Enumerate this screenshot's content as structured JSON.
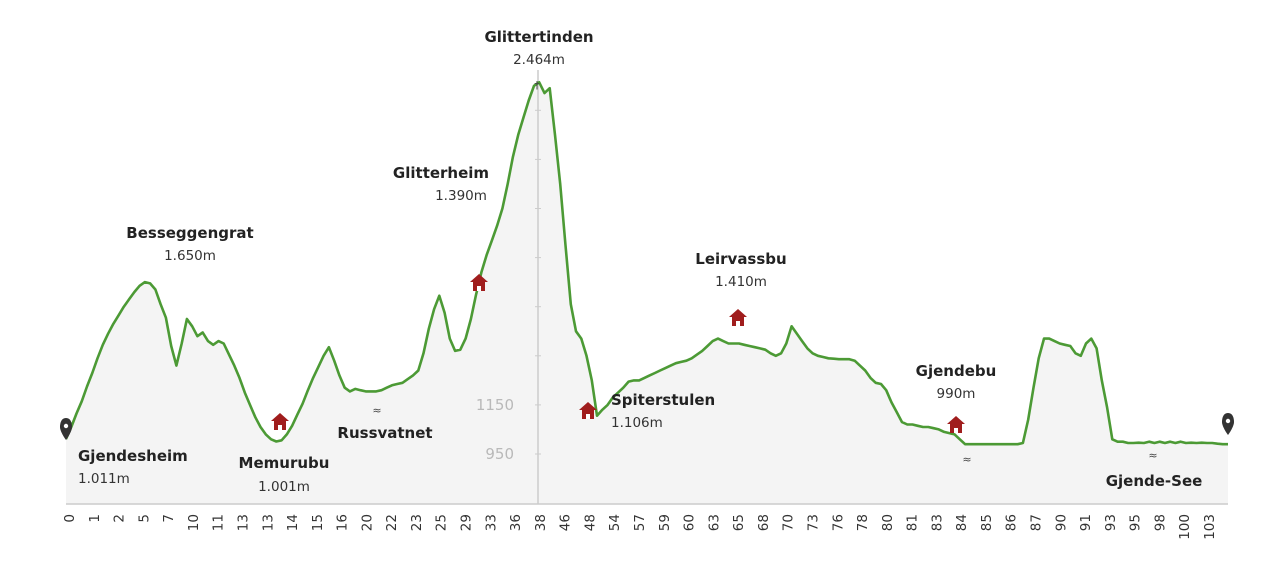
{
  "chart_data": {
    "type": "area",
    "title": "",
    "xlabel": "",
    "ylabel": "",
    "colors": {
      "line": "#4c9a35",
      "fill": "#f4f4f4",
      "hut": "#a01d1d",
      "axis": "#cccccc"
    },
    "y_ticks": [
      {
        "value": 950,
        "label": "950"
      },
      {
        "value": 1150,
        "label": "1150"
      }
    ],
    "x_ticks": [
      "0",
      "1",
      "2",
      "5",
      "7",
      "10",
      "11",
      "13",
      "13",
      "14",
      "15",
      "16",
      "20",
      "22",
      "23",
      "25",
      "29",
      "33",
      "36",
      "38",
      "46",
      "48",
      "54",
      "57",
      "59",
      "60",
      "63",
      "65",
      "68",
      "70",
      "73",
      "76",
      "78",
      "80",
      "81",
      "83",
      "84",
      "85",
      "86",
      "87",
      "90",
      "91",
      "93",
      "95",
      "98",
      "100",
      "103"
    ],
    "profile_elevation_m": [
      1011,
      1060,
      1115,
      1165,
      1225,
      1280,
      1340,
      1395,
      1440,
      1480,
      1515,
      1550,
      1580,
      1610,
      1635,
      1650,
      1645,
      1620,
      1560,
      1505,
      1390,
      1310,
      1400,
      1500,
      1470,
      1430,
      1445,
      1410,
      1395,
      1410,
      1400,
      1355,
      1310,
      1260,
      1200,
      1150,
      1100,
      1060,
      1030,
      1010,
      1001,
      1006,
      1030,
      1065,
      1110,
      1155,
      1210,
      1260,
      1305,
      1350,
      1385,
      1330,
      1270,
      1220,
      1205,
      1215,
      1210,
      1205,
      1205,
      1205,
      1210,
      1220,
      1230,
      1235,
      1240,
      1255,
      1270,
      1290,
      1360,
      1460,
      1540,
      1595,
      1525,
      1420,
      1370,
      1375,
      1420,
      1500,
      1600,
      1690,
      1760,
      1820,
      1880,
      1950,
      2050,
      2160,
      2250,
      2320,
      2390,
      2450,
      2464,
      2420,
      2440,
      2250,
      2050,
      1800,
      1560,
      1450,
      1420,
      1350,
      1250,
      1106,
      1130,
      1150,
      1180,
      1200,
      1220,
      1245,
      1250,
      1250,
      1260,
      1270,
      1280,
      1290,
      1300,
      1310,
      1320,
      1325,
      1330,
      1340,
      1355,
      1370,
      1390,
      1410,
      1420,
      1410,
      1400,
      1400,
      1400,
      1395,
      1390,
      1385,
      1380,
      1375,
      1360,
      1350,
      1360,
      1400,
      1470,
      1440,
      1410,
      1380,
      1360,
      1350,
      1345,
      1340,
      1338,
      1336,
      1336,
      1336,
      1330,
      1310,
      1290,
      1260,
      1240,
      1235,
      1210,
      1160,
      1120,
      1080,
      1070,
      1070,
      1065,
      1060,
      1060,
      1055,
      1050,
      1040,
      1035,
      1030,
      1010,
      990,
      990,
      990,
      990,
      990,
      990,
      990,
      990,
      990,
      990,
      990,
      995,
      1090,
      1220,
      1340,
      1420,
      1420,
      1410,
      1400,
      1395,
      1390,
      1360,
      1350,
      1400,
      1420,
      1380,
      1250,
      1140,
      1010,
      1000,
      1000,
      995,
      995,
      996,
      995,
      1000,
      995,
      1000,
      995,
      1000,
      995,
      1000,
      995,
      996,
      995,
      996,
      995,
      995,
      992,
      990,
      990
    ],
    "summit_index": 90,
    "annotations": [
      {
        "name": "Gjendesheim",
        "elevation": "1.011m",
        "marker": "pin"
      },
      {
        "name": "Besseggengrat",
        "elevation": "1.650m",
        "marker": "none"
      },
      {
        "name": "Memurubu",
        "elevation": "1.001m",
        "marker": "hut"
      },
      {
        "name": "Russvatnet",
        "elevation": "",
        "marker": "water"
      },
      {
        "name": "Glitterheim",
        "elevation": "1.390m",
        "marker": "hut"
      },
      {
        "name": "Glittertinden",
        "elevation": "2.464m",
        "marker": "cross"
      },
      {
        "name": "Spiterstulen",
        "elevation": "1.106m",
        "marker": "hut"
      },
      {
        "name": "Leirvassbu",
        "elevation": "1.410m",
        "marker": "hut"
      },
      {
        "name": "Gjendebu",
        "elevation": "990m",
        "marker": "hut"
      },
      {
        "name": "Gjende-See",
        "elevation": "",
        "marker": "water"
      }
    ],
    "symbols": {
      "summit_cross": "†",
      "water": "≈",
      "pin": "map-pin-icon",
      "hut": "hut-icon"
    }
  }
}
